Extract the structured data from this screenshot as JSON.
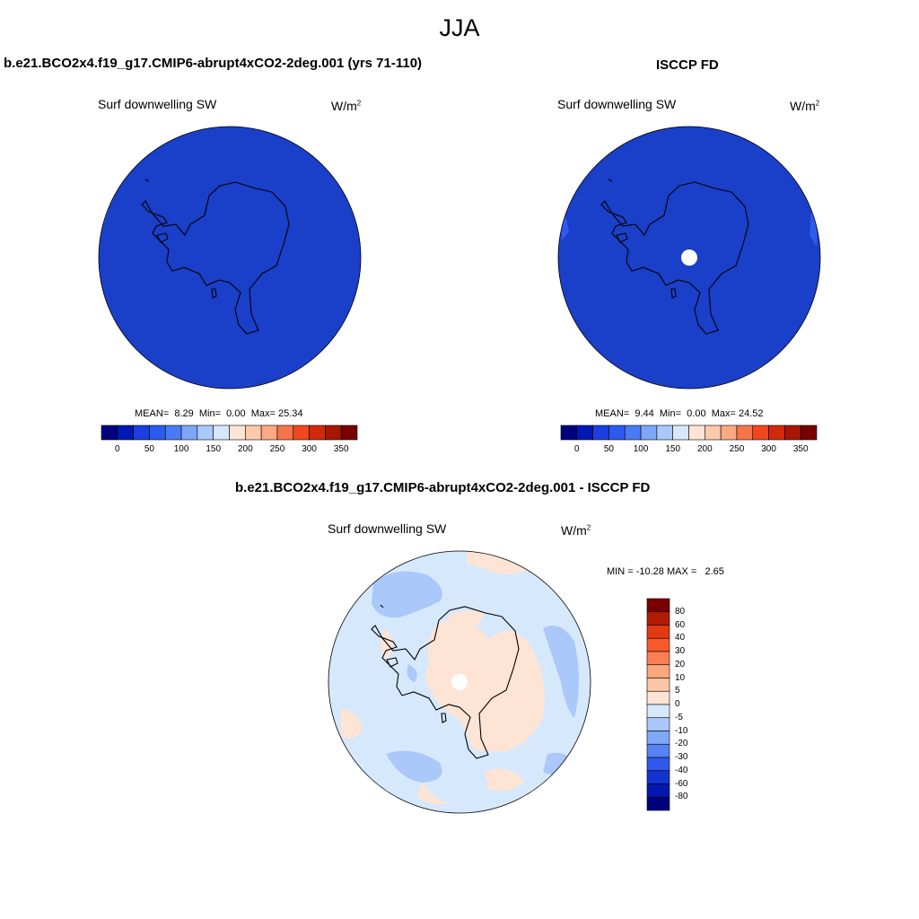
{
  "figure_title": "JJA",
  "panel_left": {
    "case_title": "b.e21.BCO2x4.f19_g17.CMIP6-abrupt4xCO2-2deg.001 (yrs 71-110)",
    "variable": "Surf downwelling SW",
    "units": "W/m",
    "units_sup": "2",
    "mean_label": "MEAN=",
    "mean": "8.29",
    "min_label": "Min=",
    "min": "0.00",
    "max_label": "Max=",
    "max": "25.34"
  },
  "panel_right": {
    "case_title": "ISCCP FD",
    "variable": "Surf downwelling SW",
    "units": "W/m",
    "units_sup": "2",
    "mean_label": "MEAN=",
    "mean": "9.44",
    "min_label": "Min=",
    "min": "0.00",
    "max_label": "Max=",
    "max": "24.52"
  },
  "panel_diff": {
    "case_title": "b.e21.BCO2x4.f19_g17.CMIP6-abrupt4xCO2-2deg.001 - ISCCP FD",
    "variable": "Surf downwelling SW",
    "units": "W/m",
    "units_sup": "2",
    "min_label": "MIN =",
    "min": "-10.28",
    "max_label": "MAX =",
    "max": "2.65"
  },
  "colorbar_abs": {
    "tick_labels": [
      "0",
      "50",
      "100",
      "150",
      "200",
      "250",
      "300",
      "350"
    ],
    "colors": [
      "#00007f",
      "#0018b4",
      "#1a3ee0",
      "#2c5af0",
      "#4a7af5",
      "#7ea6f6",
      "#aac8fa",
      "#d6e8fc",
      "#fde4d4",
      "#fcc9ac",
      "#fba884",
      "#f8744a",
      "#f0471e",
      "#d12a0a",
      "#a81606",
      "#7a0000"
    ]
  },
  "colorbar_diff": {
    "tick_labels": [
      "80",
      "60",
      "40",
      "30",
      "20",
      "10",
      "5",
      "0",
      "-5",
      "-10",
      "-20",
      "-30",
      "-40",
      "-60",
      "-80"
    ],
    "colors": [
      "#7a0000",
      "#b31c06",
      "#e23a10",
      "#f8592a",
      "#fb7f52",
      "#fca77e",
      "#fdc6a6",
      "#fde4d4",
      "#d6e8fc",
      "#aac8fa",
      "#80a8f8",
      "#5682f5",
      "#3058ea",
      "#1434d2",
      "#0418b0",
      "#00007f"
    ]
  },
  "chart_data": {
    "type": "heatmap",
    "title": "JJA",
    "map_projection": "south polar stereographic",
    "fields": [
      {
        "name": "b.e21.BCO2x4.f19_g17.CMIP6-abrupt4xCO2-2deg.001 (yrs 71-110)",
        "mean": 8.29,
        "min": 0.0,
        "max": 25.34,
        "dominant_range": "0-25"
      },
      {
        "name": "ISCCP FD",
        "mean": 9.44,
        "min": 0.0,
        "max": 24.52,
        "dominant_range": "0-25"
      },
      {
        "name": "b.e21.BCO2x4.f19_g17.CMIP6-abrupt4xCO2-2deg.001 - ISCCP FD",
        "min": -10.28,
        "max": 2.65,
        "dominant_range": "-5 to 5"
      }
    ],
    "abs_levels": [
      0,
      25,
      50,
      75,
      100,
      125,
      150,
      175,
      200,
      225,
      250,
      275,
      300,
      325,
      350
    ],
    "diff_levels": [
      -80,
      -60,
      -40,
      -30,
      -20,
      -10,
      -5,
      0,
      5,
      10,
      20,
      30,
      40,
      60,
      80
    ]
  }
}
